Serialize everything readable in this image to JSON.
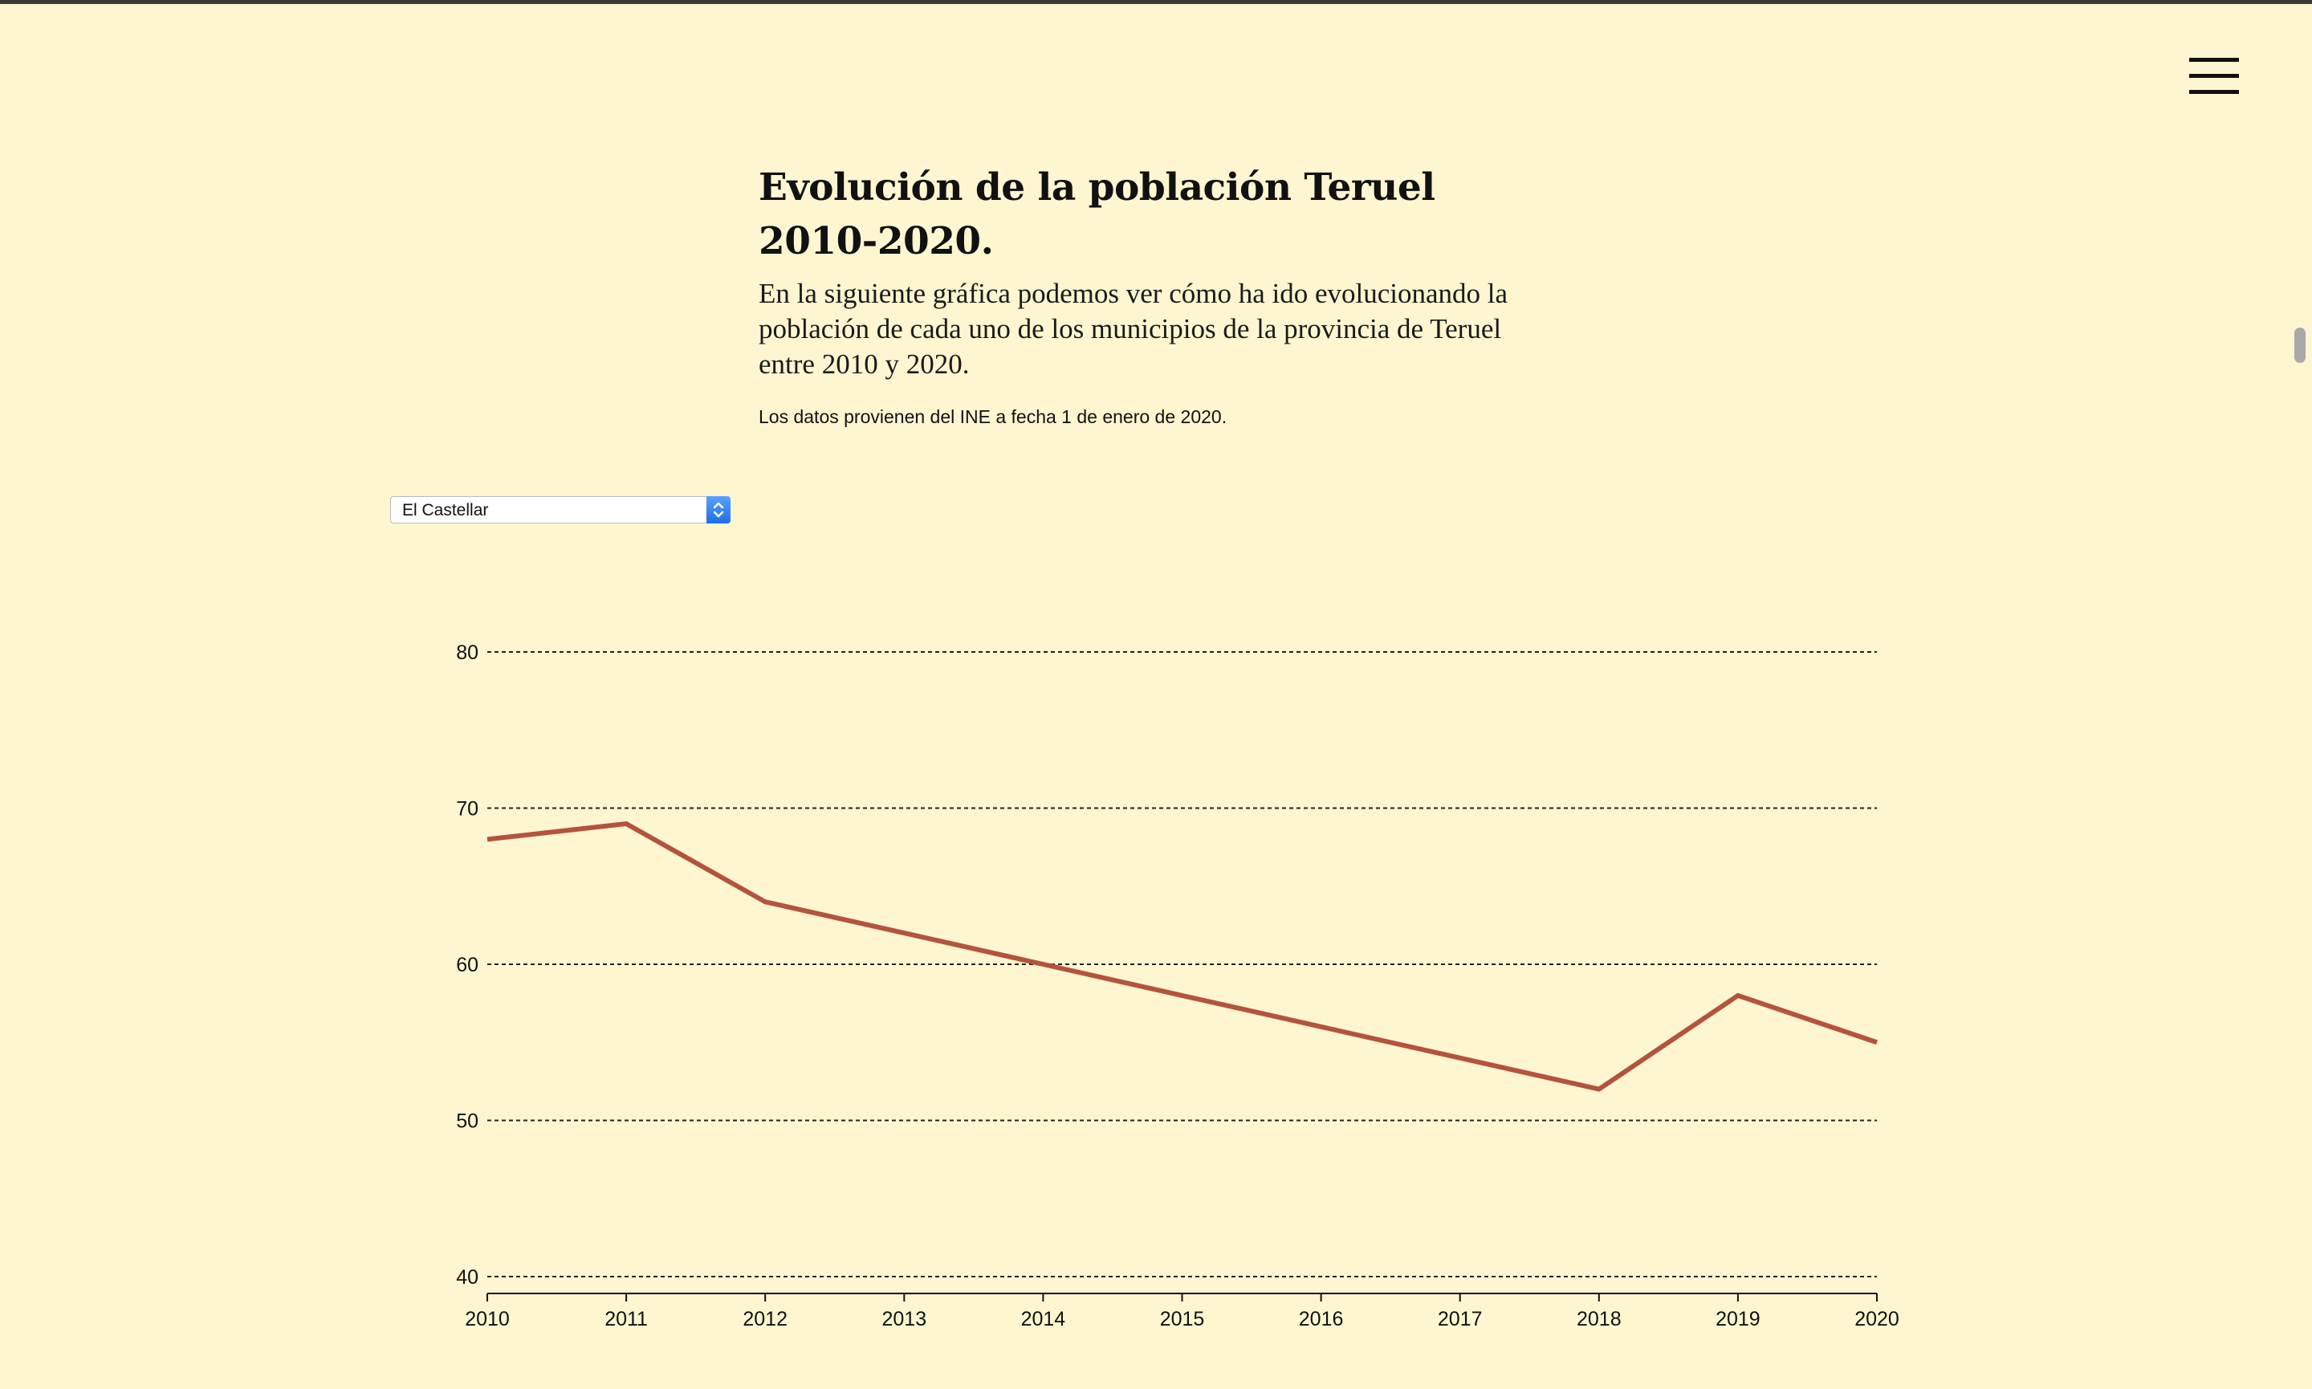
{
  "header": {
    "title": "Evolución de la población Teruel 2010-2020.",
    "subtitle": "En la siguiente gráfica podemos ver cómo ha ido evolucionando la población de cada uno de los municipios de la provincia de Teruel entre 2010 y 2020.",
    "source": "Los datos provienen del INE a fecha 1 de enero de 2020."
  },
  "selector": {
    "selected": "El Castellar"
  },
  "colors": {
    "background": "#fdf6d0",
    "line": "#b5533c",
    "grid": "#222222"
  },
  "icons": {
    "menu": "hamburger-menu-icon",
    "select": "up-down-chevron-icon"
  },
  "chart_data": {
    "type": "line",
    "title": "",
    "xlabel": "",
    "ylabel": "",
    "x": [
      2010,
      2011,
      2012,
      2013,
      2014,
      2015,
      2016,
      2017,
      2018,
      2019,
      2020
    ],
    "series": [
      {
        "values": [
          68,
          69,
          64,
          62,
          60,
          58,
          56,
          54,
          52,
          58,
          55
        ]
      }
    ],
    "ylim": [
      40,
      80
    ],
    "yticks": [
      40,
      50,
      60,
      70,
      80
    ],
    "grid": "horizontal-dashed",
    "legend": "none"
  }
}
